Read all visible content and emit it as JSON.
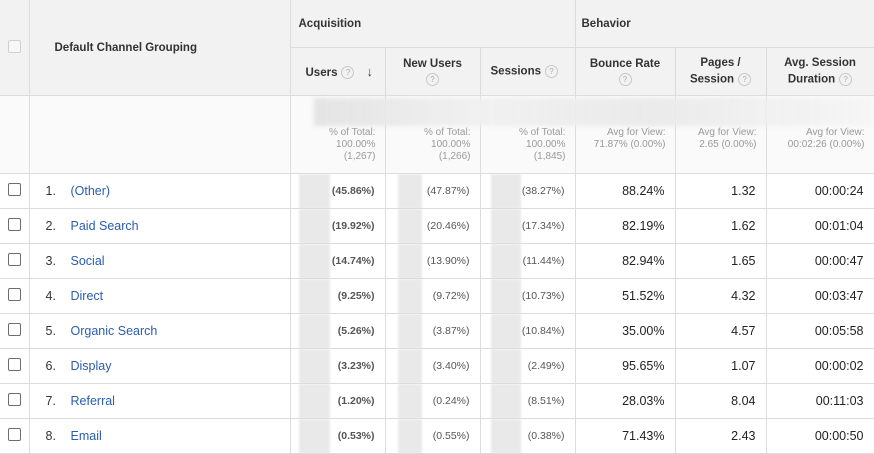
{
  "header": {
    "dimension_label": "Default Channel Grouping",
    "groups": {
      "acquisition": "Acquisition",
      "behavior": "Behavior"
    },
    "columns": {
      "users": "Users",
      "new_users": "New Users",
      "sessions": "Sessions",
      "bounce_rate": "Bounce Rate",
      "pages_session_1": "Pages /",
      "pages_session_2": "Session",
      "avg_duration_1": "Avg. Session",
      "avg_duration_2": "Duration"
    },
    "help_glyph": "?",
    "sort_glyph": "↓",
    "sort_icon": "arrow-down-icon",
    "help_icon": "help-circle-icon"
  },
  "totals": {
    "users": [
      "% of Total:",
      "100.00%",
      "(1,267)"
    ],
    "new_users": [
      "% of Total:",
      "100.00%",
      "(1,266)"
    ],
    "sessions": [
      "% of Total:",
      "100.00%",
      "(1,845)"
    ],
    "bounce_rate": [
      "Avg for View:",
      "71.87% (0.00%)"
    ],
    "pages_session": [
      "Avg for View:",
      "2.65 (0.00%)"
    ],
    "avg_duration": [
      "Avg for View:",
      "00:02:26 (0.00%)"
    ]
  },
  "rows": [
    {
      "index": "1.",
      "channel": "(Other)",
      "users": "(45.86%)",
      "new_users": "(47.87%)",
      "sessions": "(38.27%)",
      "bounce_rate": "88.24%",
      "pages_session": "1.32",
      "avg_duration": "00:00:24"
    },
    {
      "index": "2.",
      "channel": "Paid Search",
      "users": "(19.92%)",
      "new_users": "(20.46%)",
      "sessions": "(17.34%)",
      "bounce_rate": "82.19%",
      "pages_session": "1.62",
      "avg_duration": "00:01:04"
    },
    {
      "index": "3.",
      "channel": "Social",
      "users": "(14.74%)",
      "new_users": "(13.90%)",
      "sessions": "(11.44%)",
      "bounce_rate": "82.94%",
      "pages_session": "1.65",
      "avg_duration": "00:00:47"
    },
    {
      "index": "4.",
      "channel": "Direct",
      "users": "(9.25%)",
      "new_users": "(9.72%)",
      "sessions": "(10.73%)",
      "bounce_rate": "51.52%",
      "pages_session": "4.32",
      "avg_duration": "00:03:47"
    },
    {
      "index": "5.",
      "channel": "Organic Search",
      "users": "(5.26%)",
      "new_users": "(3.87%)",
      "sessions": "(10.84%)",
      "bounce_rate": "35.00%",
      "pages_session": "4.57",
      "avg_duration": "00:05:58"
    },
    {
      "index": "6.",
      "channel": "Display",
      "users": "(3.23%)",
      "new_users": "(3.40%)",
      "sessions": "(2.49%)",
      "bounce_rate": "95.65%",
      "pages_session": "1.07",
      "avg_duration": "00:00:02"
    },
    {
      "index": "7.",
      "channel": "Referral",
      "users": "(1.20%)",
      "new_users": "(0.24%)",
      "sessions": "(8.51%)",
      "bounce_rate": "28.03%",
      "pages_session": "8.04",
      "avg_duration": "00:11:03"
    },
    {
      "index": "8.",
      "channel": "Email",
      "users": "(0.53%)",
      "new_users": "(0.55%)",
      "sessions": "(0.38%)",
      "bounce_rate": "71.43%",
      "pages_session": "2.43",
      "avg_duration": "00:00:50"
    }
  ],
  "colors": {
    "link": "#2a5db0",
    "header_bg": "#f2f2f2",
    "border": "#dcdcdc"
  }
}
